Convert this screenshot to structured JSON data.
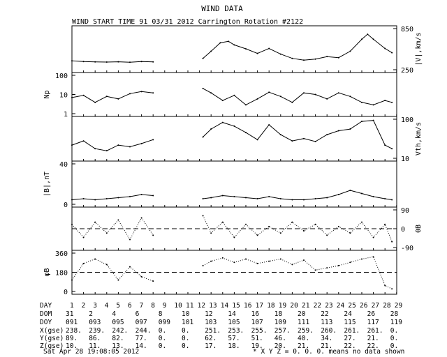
{
  "chart_data": {
    "type": "line",
    "title": "WIND DATA",
    "subtitle": "WIND START TIME  91 03/31 2012 Carrington Rotation #2122",
    "panels": [
      {
        "id": "v",
        "ylabel": "|V|,km/s",
        "axis_side": "right",
        "ticks": [
          "850",
          "250"
        ],
        "ylim": [
          250,
          850
        ],
        "scale": "linear",
        "points": [
          [
            1,
            385
          ],
          [
            2,
            375
          ],
          [
            3,
            370
          ],
          [
            4,
            368
          ],
          [
            5,
            372
          ],
          [
            6,
            365
          ],
          [
            7,
            375
          ],
          [
            8,
            370
          ],
          [
            12.3,
            420
          ],
          [
            13,
            520
          ],
          [
            13.8,
            640
          ],
          [
            14.5,
            660
          ],
          [
            15,
            610
          ],
          [
            16,
            555
          ],
          [
            17,
            490
          ],
          [
            18,
            560
          ],
          [
            19,
            480
          ],
          [
            20,
            420
          ],
          [
            21,
            395
          ],
          [
            22,
            410
          ],
          [
            23,
            445
          ],
          [
            24,
            430
          ],
          [
            25,
            520
          ],
          [
            26,
            690
          ],
          [
            26.5,
            760
          ],
          [
            27,
            690
          ],
          [
            28,
            560
          ],
          [
            28.6,
            500
          ]
        ]
      },
      {
        "id": "np",
        "ylabel": "Np",
        "axis_side": "left",
        "ticks": [
          "100",
          "10",
          "1"
        ],
        "ylim": [
          1,
          100
        ],
        "scale": "log",
        "points": [
          [
            1,
            7
          ],
          [
            2,
            9
          ],
          [
            3,
            4
          ],
          [
            4,
            8
          ],
          [
            5,
            6
          ],
          [
            6,
            11
          ],
          [
            7,
            14
          ],
          [
            8,
            12
          ],
          [
            12.3,
            20
          ],
          [
            13,
            12
          ],
          [
            14,
            5
          ],
          [
            15,
            9
          ],
          [
            16,
            3
          ],
          [
            17,
            6
          ],
          [
            18,
            13
          ],
          [
            19,
            8
          ],
          [
            20,
            4
          ],
          [
            21,
            12
          ],
          [
            22,
            10
          ],
          [
            23,
            6
          ],
          [
            24,
            12
          ],
          [
            25,
            8
          ],
          [
            26,
            4
          ],
          [
            27,
            3
          ],
          [
            28,
            5
          ],
          [
            28.6,
            4
          ]
        ]
      },
      {
        "id": "vth",
        "ylabel": "Vth,km/s",
        "axis_side": "right",
        "ticks": [
          "100",
          "10"
        ],
        "ylim": [
          10,
          100
        ],
        "scale": "log",
        "points": [
          [
            1,
            22
          ],
          [
            2,
            28
          ],
          [
            3,
            18
          ],
          [
            4,
            16
          ],
          [
            5,
            22
          ],
          [
            6,
            20
          ],
          [
            7,
            24
          ],
          [
            8,
            30
          ],
          [
            12.3,
            35
          ],
          [
            13,
            55
          ],
          [
            14,
            80
          ],
          [
            15,
            65
          ],
          [
            16,
            45
          ],
          [
            17,
            30
          ],
          [
            18,
            70
          ],
          [
            19,
            40
          ],
          [
            20,
            28
          ],
          [
            21,
            32
          ],
          [
            22,
            27
          ],
          [
            23,
            40
          ],
          [
            24,
            50
          ],
          [
            25,
            55
          ],
          [
            26,
            85
          ],
          [
            27,
            90
          ],
          [
            28,
            22
          ],
          [
            28.6,
            18
          ]
        ]
      },
      {
        "id": "b",
        "ylabel": "|B|,nT",
        "axis_side": "left",
        "ticks": [
          "40",
          "0"
        ],
        "ylim": [
          0,
          40
        ],
        "scale": "linear",
        "points": [
          [
            1,
            5
          ],
          [
            2,
            6
          ],
          [
            3,
            5
          ],
          [
            4,
            6
          ],
          [
            5,
            7
          ],
          [
            6,
            8
          ],
          [
            7,
            10
          ],
          [
            8,
            9
          ],
          [
            12.3,
            6
          ],
          [
            13,
            7
          ],
          [
            14,
            9
          ],
          [
            15,
            8
          ],
          [
            16,
            7
          ],
          [
            17,
            6
          ],
          [
            18,
            8
          ],
          [
            19,
            6
          ],
          [
            20,
            5
          ],
          [
            21,
            5
          ],
          [
            22,
            6
          ],
          [
            23,
            7
          ],
          [
            24,
            10
          ],
          [
            25,
            14
          ],
          [
            26,
            11
          ],
          [
            27,
            8
          ],
          [
            28,
            6
          ],
          [
            28.6,
            5
          ]
        ]
      },
      {
        "id": "theta",
        "ylabel": "θB",
        "axis_side": "right",
        "ticks": [
          "90",
          "0",
          "-90"
        ],
        "ylim": [
          -90,
          90
        ],
        "scale": "linear",
        "reference_line": 0,
        "points": [
          [
            1,
            20
          ],
          [
            2,
            -40
          ],
          [
            3,
            30
          ],
          [
            4,
            -20
          ],
          [
            5,
            40
          ],
          [
            6,
            -50
          ],
          [
            7,
            50
          ],
          [
            8,
            -30
          ],
          [
            12.3,
            60
          ],
          [
            13,
            -20
          ],
          [
            14,
            30
          ],
          [
            15,
            -40
          ],
          [
            16,
            20
          ],
          [
            17,
            -30
          ],
          [
            18,
            10
          ],
          [
            19,
            -20
          ],
          [
            20,
            30
          ],
          [
            21,
            -10
          ],
          [
            22,
            20
          ],
          [
            23,
            -30
          ],
          [
            24,
            10
          ],
          [
            25,
            -20
          ],
          [
            26,
            30
          ],
          [
            27,
            -40
          ],
          [
            28,
            20
          ],
          [
            28.6,
            -60
          ]
        ]
      },
      {
        "id": "phi",
        "ylabel": "φB",
        "axis_side": "left",
        "ticks": [
          "360",
          "180",
          "0"
        ],
        "ylim": [
          0,
          360
        ],
        "scale": "linear",
        "reference_line": 180,
        "points": [
          [
            1,
            110
          ],
          [
            2,
            260
          ],
          [
            3,
            300
          ],
          [
            4,
            250
          ],
          [
            5,
            110
          ],
          [
            6,
            230
          ],
          [
            7,
            140
          ],
          [
            8,
            100
          ],
          [
            12.3,
            240
          ],
          [
            13,
            280
          ],
          [
            14,
            310
          ],
          [
            15,
            270
          ],
          [
            16,
            300
          ],
          [
            17,
            260
          ],
          [
            18,
            280
          ],
          [
            19,
            300
          ],
          [
            20,
            250
          ],
          [
            21,
            290
          ],
          [
            22,
            200
          ],
          [
            23,
            220
          ],
          [
            24,
            240
          ],
          [
            25,
            270
          ],
          [
            26,
            300
          ],
          [
            27,
            320
          ],
          [
            28,
            60
          ],
          [
            28.6,
            30
          ]
        ]
      }
    ],
    "x_axis": {
      "xlim": [
        1,
        29
      ],
      "gap": [
        8,
        12.3
      ]
    }
  },
  "table": {
    "labels": [
      "DAY",
      "DOM",
      "DOY",
      "X(gse)",
      "Y(gse)",
      "Z(gse)"
    ],
    "rows": {
      "day": [
        "1",
        "2",
        "3",
        "4",
        "5",
        "6",
        "7",
        "8",
        "9",
        "10",
        "11",
        "12",
        "13",
        "14",
        "15",
        "16",
        "17",
        "18",
        "19",
        "20",
        "21",
        "22",
        "23",
        "24",
        "25",
        "26",
        "27",
        "28",
        "29"
      ],
      "dom": [
        "31",
        "2",
        "4",
        "6",
        "8",
        "10",
        "12",
        "14",
        "16",
        "18",
        "20",
        "22",
        "24",
        "26",
        "28"
      ],
      "doy": [
        "091",
        "093",
        "095",
        "097",
        "099",
        "101",
        "103",
        "105",
        "107",
        "109",
        "111",
        "113",
        "115",
        "117",
        "119"
      ],
      "x": [
        "238.",
        "239.",
        "242.",
        "244.",
        "0.",
        "0.",
        "251.",
        "253.",
        "255.",
        "257.",
        "259.",
        "260.",
        "261.",
        "261.",
        "0."
      ],
      "y": [
        "89.",
        "86.",
        "82.",
        "77.",
        "0.",
        "0.",
        "62.",
        "57.",
        "51.",
        "46.",
        "40.",
        "34.",
        "27.",
        "21.",
        "0."
      ],
      "z": [
        "10.",
        "11.",
        "13.",
        "14.",
        "0.",
        "0.",
        "17.",
        "18.",
        "19.",
        "20.",
        "21.",
        "21.",
        "22.",
        "22.",
        "0."
      ]
    }
  },
  "footer": {
    "timestamp": "Sat Apr 28 19:08:05 2012",
    "note": "* X Y Z = 0. 0. 0. means no data shown"
  }
}
